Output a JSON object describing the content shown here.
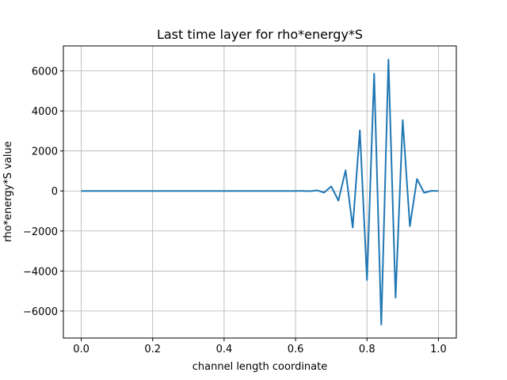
{
  "chart_data": {
    "type": "line",
    "title": "Last time layer for rho*energy*S",
    "xlabel": "channel length coordinate",
    "ylabel": "rho*energy*S value",
    "xlim": [
      -0.05,
      1.05
    ],
    "ylim": [
      -7350,
      7250
    ],
    "xticks": [
      0.0,
      0.2,
      0.4,
      0.6,
      0.8,
      1.0
    ],
    "xtick_labels": [
      "0.0",
      "0.2",
      "0.4",
      "0.6",
      "0.8",
      "1.0"
    ],
    "yticks": [
      -6000,
      -4000,
      -2000,
      0,
      2000,
      4000,
      6000
    ],
    "ytick_labels": [
      "−6000",
      "−4000",
      "−2000",
      "0",
      "2000",
      "4000",
      "6000"
    ],
    "grid": true,
    "line_color": "#1f77b4",
    "series": [
      {
        "x": [
          0.0,
          0.02,
          0.04,
          0.06,
          0.08,
          0.1,
          0.12,
          0.14,
          0.16,
          0.18,
          0.2,
          0.22,
          0.24,
          0.26,
          0.28,
          0.3,
          0.32,
          0.34,
          0.36,
          0.38,
          0.4,
          0.42,
          0.44,
          0.46,
          0.48,
          0.5,
          0.52,
          0.54,
          0.56,
          0.58,
          0.6,
          0.62,
          0.64,
          0.66,
          0.68,
          0.7,
          0.72,
          0.74,
          0.76,
          0.78,
          0.8,
          0.82,
          0.84,
          0.86,
          0.88,
          0.9,
          0.92,
          0.94,
          0.96,
          0.98,
          1.0
        ],
        "values": [
          0,
          0,
          0,
          0,
          0,
          0,
          0,
          0,
          0,
          0,
          0,
          0,
          0,
          0,
          0,
          0,
          0,
          0,
          0,
          0,
          0,
          0,
          0,
          0,
          0,
          0,
          0,
          0,
          0,
          0,
          0,
          5,
          -10,
          30,
          -80,
          230,
          -480,
          1030,
          -1830,
          3030,
          -4450,
          5860,
          -6680,
          6570,
          -5330,
          3540,
          -1760,
          600,
          -90,
          10,
          0
        ]
      }
    ]
  }
}
